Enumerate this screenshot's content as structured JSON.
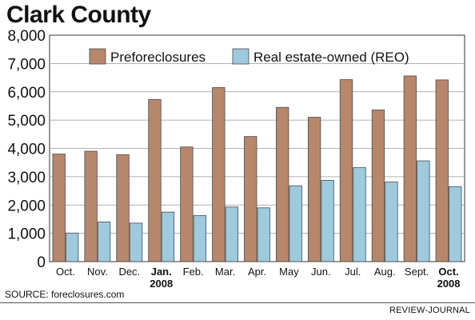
{
  "chart_data": {
    "type": "bar",
    "title": "Clark County",
    "categories": [
      [
        "Oct."
      ],
      [
        "Nov."
      ],
      [
        "Dec."
      ],
      [
        "Jan.",
        "2008"
      ],
      [
        "Feb."
      ],
      [
        "Mar."
      ],
      [
        "Apr."
      ],
      [
        "May"
      ],
      [
        "Jun."
      ],
      [
        "Jul."
      ],
      [
        "Aug."
      ],
      [
        "Sept."
      ],
      [
        "Oct.",
        "2008"
      ]
    ],
    "series": [
      {
        "name": "Preforeclosures",
        "color": "#b8866b",
        "values": [
          3800,
          3900,
          3780,
          5730,
          4050,
          6150,
          4420,
          5450,
          5100,
          6430,
          5360,
          6560,
          6420
        ]
      },
      {
        "name": "Real estate-owned (REO)",
        "color": "#9dcadd",
        "values": [
          1010,
          1400,
          1360,
          1750,
          1630,
          1930,
          1900,
          2680,
          2870,
          3320,
          2810,
          3560,
          2650
        ]
      }
    ],
    "ylim": [
      0,
      8000
    ],
    "yticks": [
      "0",
      "1,000",
      "2,000",
      "3,000",
      "4,000",
      "5,000",
      "6,000",
      "7,000",
      "8,000"
    ],
    "ytick_values": [
      0,
      1000,
      2000,
      3000,
      4000,
      5000,
      6000,
      7000,
      8000
    ],
    "grid": true,
    "legend_position": "top-center"
  },
  "footer": {
    "source": "SOURCE: foreclosures.com",
    "credit": "REVIEW-JOURNAL"
  }
}
